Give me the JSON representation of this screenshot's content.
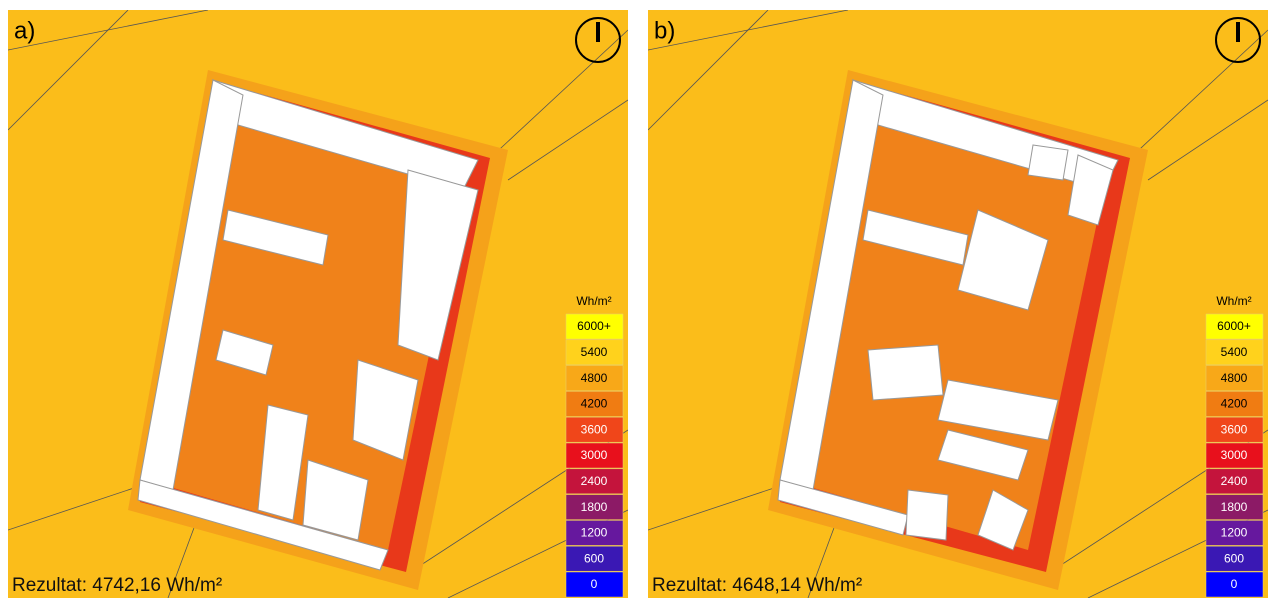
{
  "panels": [
    {
      "label": "a)",
      "result": "Rezultat: 4742,16 Wh/m²"
    },
    {
      "label": "b)",
      "result": "Rezultat: 4648,14 Wh/m²"
    }
  ],
  "legend": {
    "unit": "Wh/m²",
    "items": [
      "6000+",
      "5400",
      "4800",
      "4200",
      "3600",
      "3000",
      "2400",
      "1800",
      "1200",
      "600",
      "0"
    ],
    "colors": [
      "#ffff00",
      "#ffd21c",
      "#f8a818",
      "#f07c12",
      "#f0461a",
      "#e8101c",
      "#c4143c",
      "#8c1a66",
      "#66189e",
      "#3a18b4",
      "#0000ff"
    ]
  }
}
